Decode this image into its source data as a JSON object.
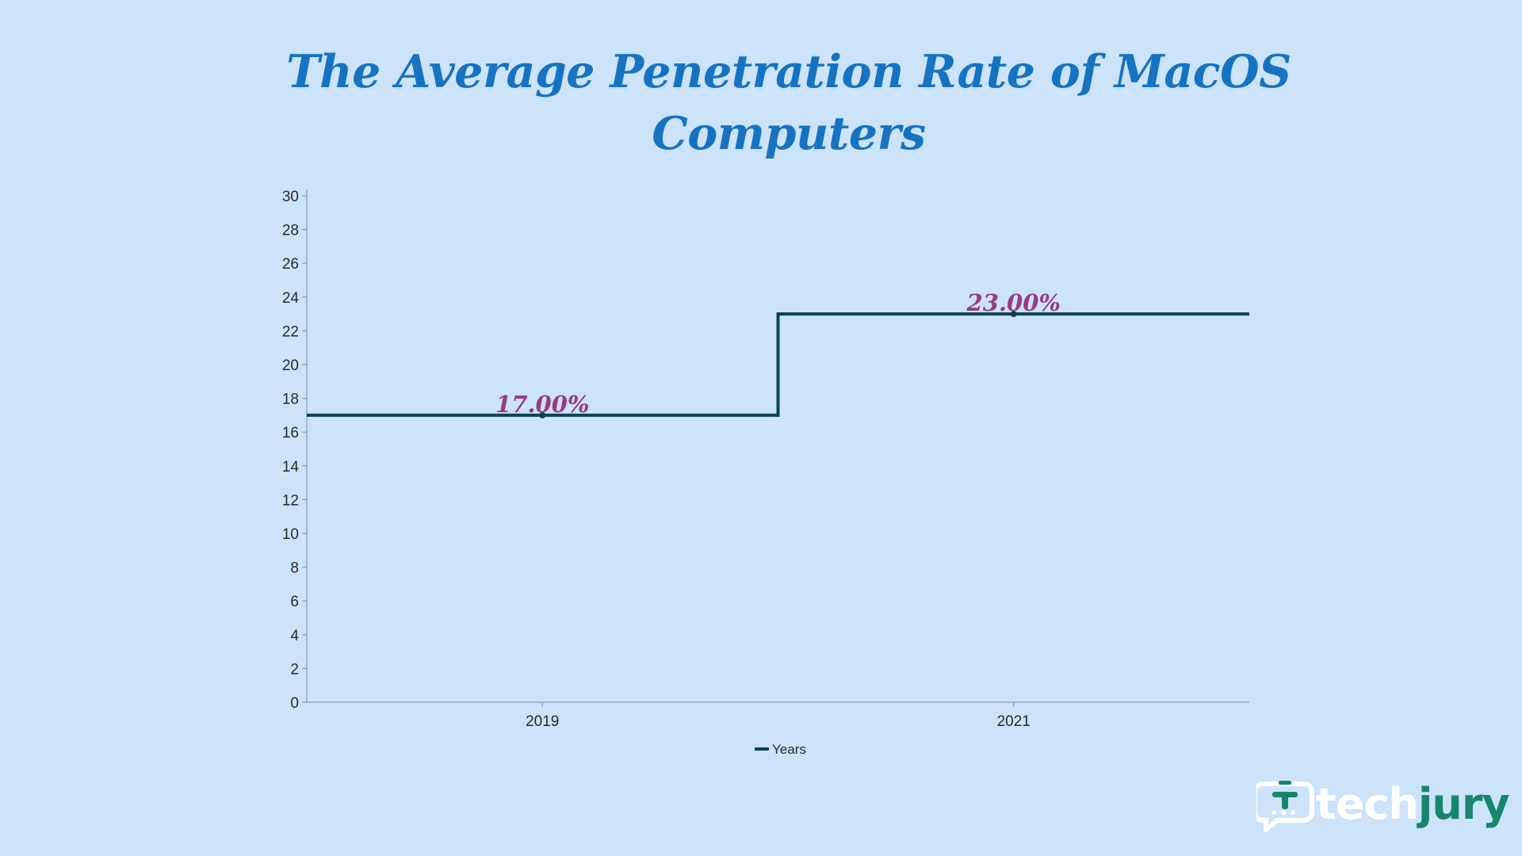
{
  "chart_data": {
    "type": "line",
    "step": true,
    "title": "The Average Penetration Rate of MacOS Computers",
    "title_lines": [
      "The Average Penetration Rate of MacOS",
      "Computers"
    ],
    "categories": [
      "2019",
      "2021"
    ],
    "series": [
      {
        "name": "Years",
        "values": [
          17,
          23
        ],
        "data_labels": [
          "17.00%",
          "23.00%"
        ],
        "color": "#0d4255"
      }
    ],
    "xlabel": "",
    "ylabel": "",
    "ylim": [
      0,
      30
    ],
    "yticks": [
      "0",
      "2",
      "4",
      "6",
      "8",
      "10",
      "12",
      "14",
      "16",
      "18",
      "20",
      "22",
      "24",
      "26",
      "28",
      "30"
    ],
    "grid": false,
    "legend": "bottom-center",
    "colors": {
      "background": "#cce3fa",
      "title": "#1673c2",
      "line": "#0d4255",
      "data_label": "#963c84",
      "axis": "#8a9bb0"
    }
  },
  "brand": {
    "name_part1": "tech",
    "name_part2": "jury",
    "icon": "chat-bubble-logo-icon",
    "colors": {
      "part1": "#ffffff",
      "part2": "#18866c"
    }
  }
}
